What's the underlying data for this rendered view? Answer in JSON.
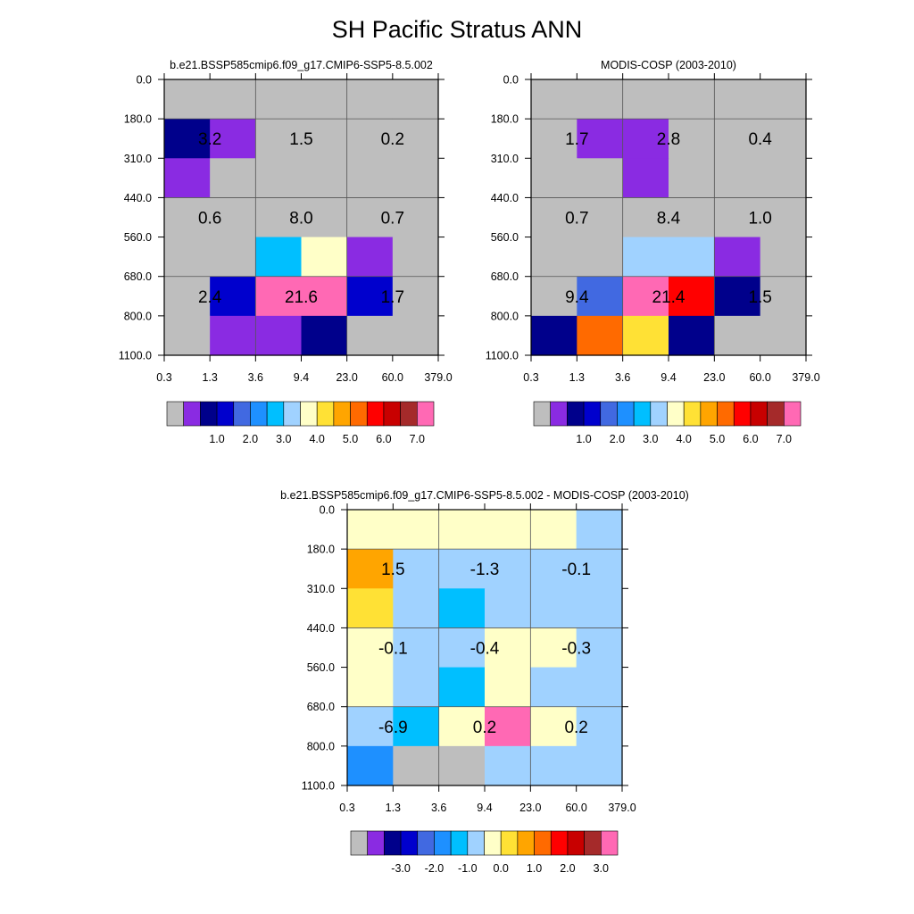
{
  "title": "SH Pacific Stratus ANN",
  "colors": {
    "abs_palette": [
      "#bebebe",
      "#8a2be2",
      "#00008b",
      "#0000cd",
      "#4169e1",
      "#1e90ff",
      "#00bfff",
      "#a0d2ff",
      "#ffffc8",
      "#ffe135",
      "#ffa500",
      "#ff6a00",
      "#ff0000",
      "#c80000",
      "#a52a2a",
      "#ff69b4"
    ],
    "diff_palette": [
      "#bebebe",
      "#8a2be2",
      "#00008b",
      "#0000cd",
      "#4169e1",
      "#1e90ff",
      "#00bfff",
      "#a0d2ff",
      "#ffffc8",
      "#ffe135",
      "#ffa500",
      "#ff6a00",
      "#ff0000",
      "#c80000",
      "#a52a2a",
      "#ff69b4"
    ]
  },
  "chart_data": [
    {
      "id": "model",
      "type": "heatmap",
      "title": "b.e21.BSSP585cmip6.f09_g17.CMIP6-SSP5-8.5.002",
      "x_ticks": [
        "0.3",
        "1.3",
        "3.6",
        "9.4",
        "23.0",
        "60.0",
        "379.0"
      ],
      "y_ticks": [
        "0.0",
        "180.0",
        "310.0",
        "440.0",
        "560.0",
        "680.0",
        "800.0",
        "1100.0"
      ],
      "cells": [
        [
          0,
          0,
          0,
          0,
          0,
          0
        ],
        [
          2,
          1,
          0,
          0,
          0,
          0
        ],
        [
          1,
          0,
          0,
          0,
          0,
          0
        ],
        [
          0,
          0,
          0,
          0,
          0,
          0
        ],
        [
          0,
          0,
          6,
          8,
          1,
          0
        ],
        [
          0,
          3,
          15,
          15,
          3,
          0
        ],
        [
          0,
          1,
          1,
          2,
          0,
          0
        ]
      ],
      "labels": [
        {
          "text": "3.2",
          "col": 0,
          "row": 1
        },
        {
          "text": "1.5",
          "col": 1,
          "row": 1
        },
        {
          "text": "0.2",
          "col": 2,
          "row": 1
        },
        {
          "text": "0.6",
          "col": 0,
          "row": 3
        },
        {
          "text": "8.0",
          "col": 1,
          "row": 3
        },
        {
          "text": "0.7",
          "col": 2,
          "row": 3
        },
        {
          "text": "2.4",
          "col": 0,
          "row": 5
        },
        {
          "text": "21.6",
          "col": 1,
          "row": 5
        },
        {
          "text": "1.7",
          "col": 2,
          "row": 5
        }
      ],
      "colorbar_labels": [
        "1.0",
        "2.0",
        "3.0",
        "4.0",
        "5.0",
        "6.0",
        "7.0"
      ]
    },
    {
      "id": "obs",
      "type": "heatmap",
      "title": "MODIS-COSP (2003-2010)",
      "x_ticks": [
        "0.3",
        "1.3",
        "3.6",
        "9.4",
        "23.0",
        "60.0",
        "379.0"
      ],
      "y_ticks": [
        "0.0",
        "180.0",
        "310.0",
        "440.0",
        "560.0",
        "680.0",
        "800.0",
        "1100.0"
      ],
      "cells": [
        [
          0,
          0,
          0,
          0,
          0,
          0
        ],
        [
          0,
          1,
          1,
          0,
          0,
          0
        ],
        [
          0,
          0,
          1,
          0,
          0,
          0
        ],
        [
          0,
          0,
          0,
          0,
          0,
          0
        ],
        [
          0,
          0,
          7,
          7,
          1,
          0
        ],
        [
          0,
          4,
          15,
          12,
          2,
          0
        ],
        [
          2,
          11,
          9,
          2,
          0,
          0
        ]
      ],
      "labels": [
        {
          "text": "1.7",
          "col": 0,
          "row": 1
        },
        {
          "text": "2.8",
          "col": 1,
          "row": 1
        },
        {
          "text": "0.4",
          "col": 2,
          "row": 1
        },
        {
          "text": "0.7",
          "col": 0,
          "row": 3
        },
        {
          "text": "8.4",
          "col": 1,
          "row": 3
        },
        {
          "text": "1.0",
          "col": 2,
          "row": 3
        },
        {
          "text": "9.4",
          "col": 0,
          "row": 5
        },
        {
          "text": "21.4",
          "col": 1,
          "row": 5
        },
        {
          "text": "1.5",
          "col": 2,
          "row": 5
        }
      ],
      "colorbar_labels": [
        "1.0",
        "2.0",
        "3.0",
        "4.0",
        "5.0",
        "6.0",
        "7.0"
      ]
    },
    {
      "id": "diff",
      "type": "heatmap",
      "title": "b.e21.BSSP585cmip6.f09_g17.CMIP6-SSP5-8.5.002 - MODIS-COSP (2003-2010)",
      "x_ticks": [
        "0.3",
        "1.3",
        "3.6",
        "9.4",
        "23.0",
        "60.0",
        "379.0"
      ],
      "y_ticks": [
        "0.0",
        "180.0",
        "310.0",
        "440.0",
        "560.0",
        "680.0",
        "800.0",
        "1100.0"
      ],
      "cells": [
        [
          8,
          8,
          8,
          8,
          8,
          7
        ],
        [
          10,
          7,
          7,
          7,
          7,
          7
        ],
        [
          9,
          7,
          6,
          7,
          7,
          7
        ],
        [
          8,
          7,
          7,
          8,
          8,
          7
        ],
        [
          8,
          7,
          6,
          8,
          7,
          7
        ],
        [
          7,
          6,
          8,
          15,
          8,
          7
        ],
        [
          5,
          0,
          0,
          7,
          7,
          7
        ]
      ],
      "labels": [
        {
          "text": "1.5",
          "col": 0,
          "row": 1
        },
        {
          "text": "-1.3",
          "col": 1,
          "row": 1
        },
        {
          "text": "-0.1",
          "col": 2,
          "row": 1
        },
        {
          "text": "-0.1",
          "col": 0,
          "row": 3
        },
        {
          "text": "-0.4",
          "col": 1,
          "row": 3
        },
        {
          "text": "-0.3",
          "col": 2,
          "row": 3
        },
        {
          "text": "-6.9",
          "col": 0,
          "row": 5
        },
        {
          "text": "0.2",
          "col": 1,
          "row": 5
        },
        {
          "text": "0.2",
          "col": 2,
          "row": 5
        }
      ],
      "colorbar_labels": [
        "-3.0",
        "-2.0",
        "-1.0",
        "0.0",
        "1.0",
        "2.0",
        "3.0"
      ]
    }
  ]
}
